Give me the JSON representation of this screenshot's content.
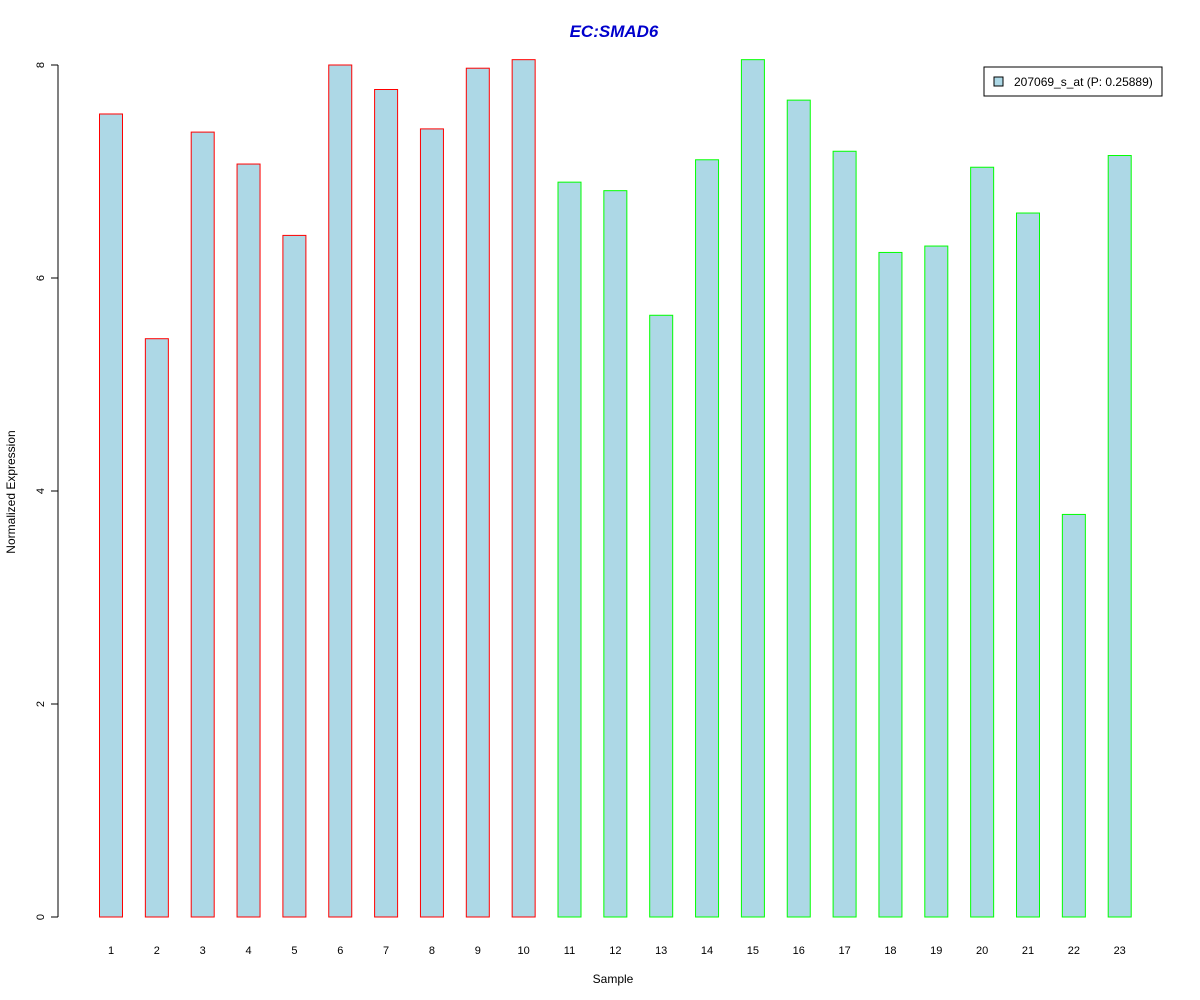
{
  "chart_data": {
    "type": "bar",
    "title": "EC:SMAD6",
    "xlabel": "Sample",
    "ylabel": "Normalized Expression",
    "categories": [
      "1",
      "2",
      "3",
      "4",
      "5",
      "6",
      "7",
      "8",
      "9",
      "10",
      "11",
      "12",
      "13",
      "14",
      "15",
      "16",
      "17",
      "18",
      "19",
      "20",
      "21",
      "22",
      "23"
    ],
    "series": [
      {
        "name": "207069_s_at (P: 0.25889)",
        "values": [
          7.54,
          5.43,
          7.37,
          7.07,
          6.4,
          8.0,
          7.77,
          7.4,
          7.97,
          8.05,
          6.9,
          6.82,
          5.65,
          7.11,
          8.05,
          7.67,
          7.19,
          6.24,
          6.3,
          7.04,
          6.61,
          3.78,
          7.15
        ]
      }
    ],
    "group_of_sample": [
      1,
      1,
      1,
      1,
      1,
      1,
      1,
      1,
      1,
      1,
      2,
      2,
      2,
      2,
      2,
      2,
      2,
      2,
      2,
      2,
      2,
      2,
      2
    ],
    "ylim": [
      0,
      8
    ],
    "yticks": [
      0,
      2,
      4,
      6,
      8
    ],
    "grid": false,
    "legend_position": "top-right",
    "colors": {
      "bar_fill": "#add8e6",
      "group_1_border": "#ff0000",
      "group_2_border": "#00ff00",
      "title": "#0000cc",
      "axis": "#000000"
    }
  }
}
